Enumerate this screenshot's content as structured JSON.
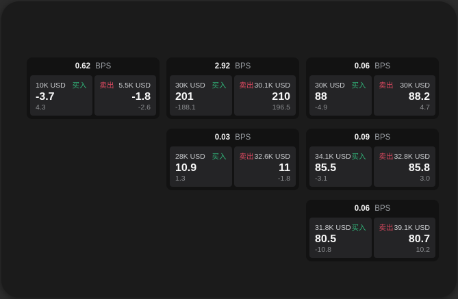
{
  "labels": {
    "bps_unit": "BPS",
    "buy": "买入",
    "sell": "卖出"
  },
  "colors": {
    "buy_green": "#30b277",
    "sell_red": "#d9485f",
    "window_bg": "#1b1b1b",
    "card_bg": "#121212",
    "panel_bg": "#242426"
  },
  "cards": [
    {
      "grid": {
        "row": 1,
        "col": 1
      },
      "bps": "0.62",
      "buy": {
        "amount": "10K USD",
        "value": "-3.7",
        "delta": "4.3"
      },
      "sell": {
        "amount": "5.5K USD",
        "value": "-1.8",
        "delta": "-2.6"
      }
    },
    {
      "grid": {
        "row": 1,
        "col": 2
      },
      "bps": "2.92",
      "buy": {
        "amount": "30K USD",
        "value": "201",
        "delta": "-188.1"
      },
      "sell": {
        "amount": "30.1K USD",
        "value": "210",
        "delta": "196.5"
      }
    },
    {
      "grid": {
        "row": 1,
        "col": 3
      },
      "bps": "0.06",
      "buy": {
        "amount": "30K USD",
        "value": "88",
        "delta": "-4.9"
      },
      "sell": {
        "amount": "30K USD",
        "value": "88.2",
        "delta": "4.7"
      }
    },
    {
      "grid": {
        "row": 2,
        "col": 2
      },
      "bps": "0.03",
      "buy": {
        "amount": "28K USD",
        "value": "10.9",
        "delta": "1.3"
      },
      "sell": {
        "amount": "32.6K USD",
        "value": "11",
        "delta": "-1.8"
      }
    },
    {
      "grid": {
        "row": 2,
        "col": 3
      },
      "bps": "0.09",
      "buy": {
        "amount": "34.1K USD",
        "value": "85.5",
        "delta": "-3.1"
      },
      "sell": {
        "amount": "32.8K USD",
        "value": "85.8",
        "delta": "3.0"
      }
    },
    {
      "grid": {
        "row": 3,
        "col": 3
      },
      "bps": "0.06",
      "buy": {
        "amount": "31.8K USD",
        "value": "80.5",
        "delta": "-10.8"
      },
      "sell": {
        "amount": "39.1K USD",
        "value": "80.7",
        "delta": "10.2"
      }
    }
  ]
}
